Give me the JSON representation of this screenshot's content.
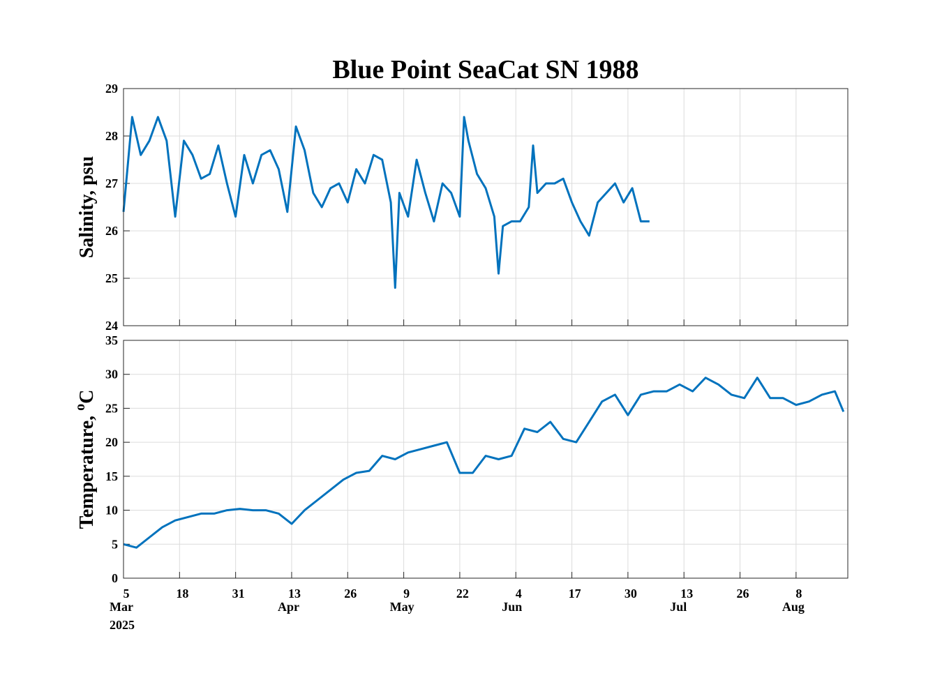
{
  "chart_data": [
    {
      "type": "line",
      "title": "Blue Point SeaCat SN 1988",
      "ylabel": "Salinity, psu",
      "color": "#0072bd",
      "x": [
        "2025-03-05",
        "2025-03-07",
        "2025-03-09",
        "2025-03-11",
        "2025-03-13",
        "2025-03-15",
        "2025-03-17",
        "2025-03-19",
        "2025-03-21",
        "2025-03-23",
        "2025-03-25",
        "2025-03-27",
        "2025-03-29",
        "2025-03-31",
        "2025-04-02",
        "2025-04-04",
        "2025-04-06",
        "2025-04-08",
        "2025-04-10",
        "2025-04-12",
        "2025-04-14",
        "2025-04-16",
        "2025-04-18",
        "2025-04-20",
        "2025-04-22",
        "2025-04-24",
        "2025-04-26",
        "2025-04-28",
        "2025-04-30",
        "2025-05-02",
        "2025-05-04",
        "2025-05-06",
        "2025-05-07",
        "2025-05-08",
        "2025-05-10",
        "2025-05-12",
        "2025-05-14",
        "2025-05-16",
        "2025-05-18",
        "2025-05-20",
        "2025-05-22",
        "2025-05-23",
        "2025-05-24",
        "2025-05-26",
        "2025-05-28",
        "2025-05-30",
        "2025-05-31",
        "2025-06-01",
        "2025-06-03",
        "2025-06-05",
        "2025-06-07",
        "2025-06-08",
        "2025-06-09",
        "2025-06-11",
        "2025-06-13",
        "2025-06-15",
        "2025-06-17",
        "2025-06-19",
        "2025-06-21",
        "2025-06-23",
        "2025-06-25",
        "2025-06-27",
        "2025-06-29",
        "2025-07-01",
        "2025-07-03",
        "2025-07-05"
      ],
      "values": [
        26.4,
        28.4,
        27.6,
        27.9,
        28.4,
        27.9,
        26.3,
        27.9,
        27.6,
        27.1,
        27.2,
        27.8,
        27.0,
        26.3,
        27.6,
        27.0,
        27.6,
        27.7,
        27.3,
        26.4,
        28.2,
        27.7,
        26.8,
        26.5,
        26.9,
        27.0,
        26.6,
        27.3,
        27.0,
        27.6,
        27.5,
        26.6,
        24.8,
        26.8,
        26.3,
        27.5,
        26.8,
        26.2,
        27.0,
        26.8,
        26.3,
        28.4,
        27.9,
        27.2,
        26.9,
        26.3,
        25.1,
        26.1,
        26.2,
        26.2,
        26.5,
        27.8,
        26.8,
        27.0,
        27.0,
        27.1,
        26.6,
        26.2,
        25.9,
        26.6,
        26.8,
        27.0,
        26.6,
        26.9,
        26.2,
        26.2
      ],
      "xlim": [
        "2025-03-05",
        "2025-08-20"
      ],
      "xticks": [
        "2025-03-05",
        "2025-03-18",
        "2025-03-31",
        "2025-04-13",
        "2025-04-26",
        "2025-05-09",
        "2025-05-22",
        "2025-06-04",
        "2025-06-17",
        "2025-06-30",
        "2025-07-13",
        "2025-07-26",
        "2025-08-08"
      ],
      "ylim": [
        24,
        29
      ],
      "yticks": [
        24,
        25,
        26,
        27,
        28,
        29
      ],
      "grid": true
    },
    {
      "type": "line",
      "ylabel": "Temperature, ",
      "ylabel_sup": "o",
      "ylabel_unit": "C",
      "color": "#0072bd",
      "x": [
        "2025-03-05",
        "2025-03-08",
        "2025-03-11",
        "2025-03-14",
        "2025-03-17",
        "2025-03-20",
        "2025-03-23",
        "2025-03-26",
        "2025-03-29",
        "2025-04-01",
        "2025-04-04",
        "2025-04-07",
        "2025-04-10",
        "2025-04-13",
        "2025-04-16",
        "2025-04-19",
        "2025-04-22",
        "2025-04-25",
        "2025-04-28",
        "2025-05-01",
        "2025-05-04",
        "2025-05-07",
        "2025-05-10",
        "2025-05-13",
        "2025-05-16",
        "2025-05-19",
        "2025-05-22",
        "2025-05-25",
        "2025-05-28",
        "2025-05-31",
        "2025-06-03",
        "2025-06-06",
        "2025-06-09",
        "2025-06-12",
        "2025-06-15",
        "2025-06-18",
        "2025-06-21",
        "2025-06-24",
        "2025-06-27",
        "2025-06-30",
        "2025-07-03",
        "2025-07-06",
        "2025-07-09",
        "2025-07-12",
        "2025-07-15",
        "2025-07-18",
        "2025-07-21",
        "2025-07-24",
        "2025-07-27",
        "2025-07-30",
        "2025-08-02",
        "2025-08-05",
        "2025-08-08",
        "2025-08-11",
        "2025-08-14",
        "2025-08-17",
        "2025-08-19"
      ],
      "values": [
        5.0,
        4.5,
        6.0,
        7.5,
        8.5,
        9.0,
        9.5,
        9.5,
        10.0,
        10.2,
        10.0,
        10.0,
        9.5,
        8.0,
        10.0,
        11.5,
        13.0,
        14.5,
        15.5,
        15.8,
        18.0,
        17.5,
        18.5,
        19.0,
        19.5,
        20.0,
        15.5,
        15.5,
        18.0,
        17.5,
        18.0,
        22.0,
        21.5,
        23.0,
        20.5,
        20.0,
        23.0,
        26.0,
        27.0,
        24.0,
        27.0,
        27.5,
        27.5,
        28.5,
        27.5,
        29.5,
        28.5,
        27.0,
        26.5,
        29.5,
        26.5,
        26.5,
        25.5,
        26.0,
        27.0,
        27.5,
        24.5
      ],
      "xlim": [
        "2025-03-05",
        "2025-08-20"
      ],
      "xticks": [
        {
          "value": "2025-03-05",
          "label": "5"
        },
        {
          "value": "2025-03-18",
          "label": "18"
        },
        {
          "value": "2025-03-31",
          "label": "31"
        },
        {
          "value": "2025-04-13",
          "label": "13"
        },
        {
          "value": "2025-04-26",
          "label": "26"
        },
        {
          "value": "2025-05-09",
          "label": "9"
        },
        {
          "value": "2025-05-22",
          "label": "22"
        },
        {
          "value": "2025-06-04",
          "label": "4"
        },
        {
          "value": "2025-06-17",
          "label": "17"
        },
        {
          "value": "2025-06-30",
          "label": "30"
        },
        {
          "value": "2025-07-13",
          "label": "13"
        },
        {
          "value": "2025-07-26",
          "label": "26"
        },
        {
          "value": "2025-08-08",
          "label": "8"
        }
      ],
      "xtick_months": [
        {
          "value": "2025-03-05",
          "label": "Mar"
        },
        {
          "value": "2025-04-13",
          "label": "Apr"
        },
        {
          "value": "2025-05-09",
          "label": "May"
        },
        {
          "value": "2025-06-04",
          "label": "Jun"
        },
        {
          "value": "2025-07-13",
          "label": "Jul"
        },
        {
          "value": "2025-08-08",
          "label": "Aug"
        }
      ],
      "xtick_year": {
        "value": "2025-03-05",
        "label": "2025"
      },
      "ylim": [
        0,
        35
      ],
      "yticks": [
        0,
        5,
        10,
        15,
        20,
        25,
        30,
        35
      ],
      "grid": true
    }
  ]
}
